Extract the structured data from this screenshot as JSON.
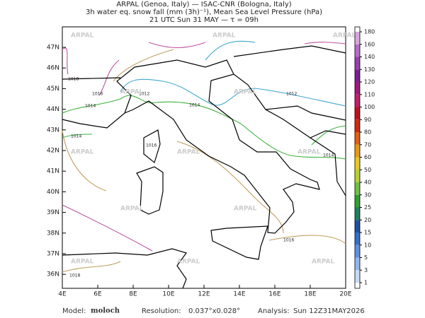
{
  "header": {
    "lines": [
      "ARPAL (Genoa, Italy)  —  ISAC-CNR (Bologna, Italy)",
      "3h water eq. snow fall (mm (3h)⁻¹), Mean Sea Level Pressure (hPa)",
      "21 UTC Sun 31 MAY   —  τ = 09h"
    ]
  },
  "map": {
    "lon_ticks": [
      "4E",
      "6E",
      "8E",
      "10E",
      "12E",
      "14E",
      "16E",
      "18E",
      "20E"
    ],
    "lat_ticks": [
      "47N",
      "46N",
      "45N",
      "44N",
      "43N",
      "42N",
      "41N",
      "40N",
      "39N",
      "38N",
      "37N",
      "36N"
    ],
    "watermark": "ARPAL",
    "isobar_labels": [
      "1018",
      "1016",
      "1014",
      "1012",
      "1012",
      "1014",
      "1016",
      "1014",
      "1014",
      "1016",
      "1018"
    ]
  },
  "colorbar": {
    "labels": [
      "180",
      "160",
      "140",
      "130",
      "120",
      "110",
      "100",
      "90",
      "80",
      "70",
      "60",
      "50",
      "40",
      "30",
      "25",
      "20",
      "15",
      "10",
      "5",
      "3",
      "1"
    ],
    "colors": [
      "#d9a6e0",
      "#b86cc8",
      "#9a3fb0",
      "#7d1e94",
      "#a0187a",
      "#c0206a",
      "#c01020",
      "#d02a10",
      "#e06010",
      "#e89a10",
      "#e8c820",
      "#b8d030",
      "#70c040",
      "#30a030",
      "#208060",
      "#2050a0",
      "#3070c8",
      "#6090e0",
      "#90b8f0",
      "#c8dcf8"
    ]
  },
  "footer": {
    "model_label": "Model:",
    "model": "moloch",
    "resolution_label": "Resolution:",
    "resolution": "0.037°x0.028°",
    "analysis_label": "Analysis:",
    "analysis": "Sun 12Z31MAY2026"
  }
}
